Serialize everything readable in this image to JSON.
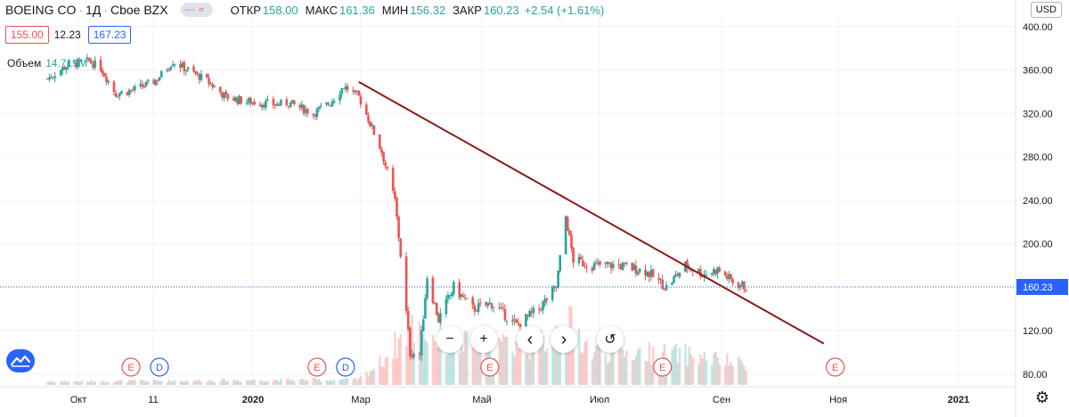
{
  "header": {
    "symbol": "BOEING CO",
    "interval": "1Д",
    "exchange": "Cboe BZX",
    "open_label": "ОТКР",
    "open_value": "158.00",
    "high_label": "МАКС",
    "high_value": "161.36",
    "low_label": "МИН",
    "low_value": "156.32",
    "close_label": "ЗАКР",
    "close_value": "160.23",
    "change": "+2.54 (+1.61%)"
  },
  "price_boxes": {
    "bid": "155.00",
    "spread": "12.23",
    "ask": "167.23"
  },
  "volume": {
    "label": "Объем",
    "value": "14.719M"
  },
  "currency": "USD",
  "colors": {
    "up": "#26a69a",
    "down": "#ef5350",
    "trendline": "#8b1a1a",
    "last_price": "#2962ff",
    "event": "#ef5350",
    "dividend": "#2962ff"
  },
  "controls": {
    "zoom_out": "−",
    "zoom_in": "+",
    "scroll_left": "‹",
    "scroll_right": "›",
    "reset": "↺"
  },
  "chart_data": {
    "type": "candlestick",
    "title": "BOEING CO · 1Д · Cboe BZX",
    "y_axis": {
      "ticks": [
        80,
        120,
        160,
        200,
        240,
        280,
        320,
        360,
        400
      ],
      "tick_labels": [
        "80.00",
        "120.00",
        "160.00",
        "200.00",
        "240.00",
        "280.00",
        "320.00",
        "360.00",
        "400.00"
      ],
      "range": [
        70,
        408
      ]
    },
    "x_axis": {
      "tick_labels": [
        "Окт",
        "11",
        "2020",
        "Мар",
        "Май",
        "Июл",
        "Сен",
        "Ноя",
        "2021"
      ]
    },
    "last_price": {
      "value": 160.23,
      "label": "160.23"
    },
    "price_path": [
      {
        "date": "2019-09-09",
        "price": 352
      },
      {
        "date": "2019-09-20",
        "price": 365
      },
      {
        "date": "2019-10-01",
        "price": 368
      },
      {
        "date": "2019-10-07",
        "price": 362
      },
      {
        "date": "2019-10-15",
        "price": 338
      },
      {
        "date": "2019-10-25",
        "price": 342
      },
      {
        "date": "2019-11-05",
        "price": 350
      },
      {
        "date": "2019-11-14",
        "price": 368
      },
      {
        "date": "2019-11-22",
        "price": 360
      },
      {
        "date": "2019-12-02",
        "price": 350
      },
      {
        "date": "2019-12-12",
        "price": 335
      },
      {
        "date": "2019-12-23",
        "price": 331
      },
      {
        "date": "2020-01-08",
        "price": 328
      },
      {
        "date": "2020-01-14",
        "price": 330
      },
      {
        "date": "2020-01-27",
        "price": 320
      },
      {
        "date": "2020-02-05",
        "price": 330
      },
      {
        "date": "2020-02-12",
        "price": 345
      },
      {
        "date": "2020-02-20",
        "price": 335
      },
      {
        "date": "2020-02-25",
        "price": 315
      },
      {
        "date": "2020-03-03",
        "price": 285
      },
      {
        "date": "2020-03-10",
        "price": 240
      },
      {
        "date": "2020-03-13",
        "price": 190
      },
      {
        "date": "2020-03-18",
        "price": 100
      },
      {
        "date": "2020-03-23",
        "price": 98
      },
      {
        "date": "2020-03-27",
        "price": 170
      },
      {
        "date": "2020-04-02",
        "price": 130
      },
      {
        "date": "2020-04-10",
        "price": 160
      },
      {
        "date": "2020-04-20",
        "price": 140
      },
      {
        "date": "2020-04-30",
        "price": 145
      },
      {
        "date": "2020-05-13",
        "price": 125
      },
      {
        "date": "2020-05-25",
        "price": 140
      },
      {
        "date": "2020-06-03",
        "price": 160
      },
      {
        "date": "2020-06-08",
        "price": 225
      },
      {
        "date": "2020-06-12",
        "price": 185
      },
      {
        "date": "2020-06-22",
        "price": 180
      },
      {
        "date": "2020-07-06",
        "price": 180
      },
      {
        "date": "2020-07-20",
        "price": 175
      },
      {
        "date": "2020-07-31",
        "price": 160
      },
      {
        "date": "2020-08-10",
        "price": 180
      },
      {
        "date": "2020-08-20",
        "price": 172
      },
      {
        "date": "2020-08-27",
        "price": 176
      },
      {
        "date": "2020-09-04",
        "price": 165
      },
      {
        "date": "2020-09-11",
        "price": 160
      }
    ],
    "volume_profile": [
      {
        "date": "2019-09-09",
        "volume": 0.05
      },
      {
        "date": "2020-02-20",
        "volume": 0.08
      },
      {
        "date": "2020-03-03",
        "volume": 0.35
      },
      {
        "date": "2020-03-18",
        "volume": 0.85
      },
      {
        "date": "2020-04-10",
        "volume": 0.6
      },
      {
        "date": "2020-05-25",
        "volume": 0.6
      },
      {
        "date": "2020-06-08",
        "volume": 0.95
      },
      {
        "date": "2020-06-22",
        "volume": 0.5
      },
      {
        "date": "2020-08-10",
        "volume": 0.45
      },
      {
        "date": "2020-09-11",
        "volume": 0.3
      }
    ],
    "trendline": {
      "start": {
        "date": "2020-02-20",
        "price": 349
      },
      "end": {
        "date": "2020-10-22",
        "price": 108
      }
    },
    "events": [
      {
        "date": "2019-10-23",
        "label": "E"
      },
      {
        "date": "2019-11-07",
        "label": "D"
      },
      {
        "date": "2020-01-29",
        "label": "E"
      },
      {
        "date": "2020-02-13",
        "label": "D"
      },
      {
        "date": "2020-04-29",
        "label": "E"
      },
      {
        "date": "2020-07-29",
        "label": "E"
      },
      {
        "date": "2020-10-28",
        "label": "E"
      }
    ],
    "legend": "top-left",
    "grid": true
  }
}
